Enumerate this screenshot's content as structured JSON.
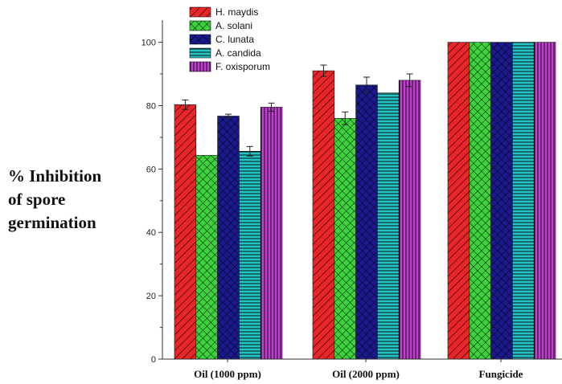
{
  "chart_data": {
    "type": "bar",
    "categories": [
      "Oil (1000 ppm)",
      "Oil (2000 ppm)",
      "Fungicide"
    ],
    "series": [
      {
        "name": "H. maydis",
        "values": [
          80.3,
          91.0,
          100
        ],
        "errors": [
          1.5,
          1.8,
          0
        ],
        "color": "#e8262a",
        "pattern": "diag"
      },
      {
        "name": "A. solani",
        "values": [
          64.3,
          76.0,
          100
        ],
        "errors": [
          0,
          2.0,
          0
        ],
        "color": "#3dd13d",
        "pattern": "cross"
      },
      {
        "name": "C. lunata",
        "values": [
          76.7,
          86.5,
          100
        ],
        "errors": [
          0.6,
          2.5,
          0
        ],
        "color": "#1a1a8c",
        "pattern": "cross"
      },
      {
        "name": "A. candida",
        "values": [
          65.6,
          84.0,
          100
        ],
        "errors": [
          1.5,
          0,
          0
        ],
        "color": "#28c4c4",
        "pattern": "hlines"
      },
      {
        "name": "F. oxisporum",
        "values": [
          79.5,
          88.0,
          100
        ],
        "errors": [
          1.3,
          2.0,
          0
        ],
        "color": "#c040d0",
        "pattern": "vlines"
      }
    ],
    "ylabel": [
      "% Inhibition",
      "of spore",
      "germination"
    ],
    "yticks": [
      0,
      20,
      40,
      60,
      80,
      100
    ],
    "ylim": [
      0,
      107
    ],
    "legend_position": "top-left",
    "grid": false
  }
}
